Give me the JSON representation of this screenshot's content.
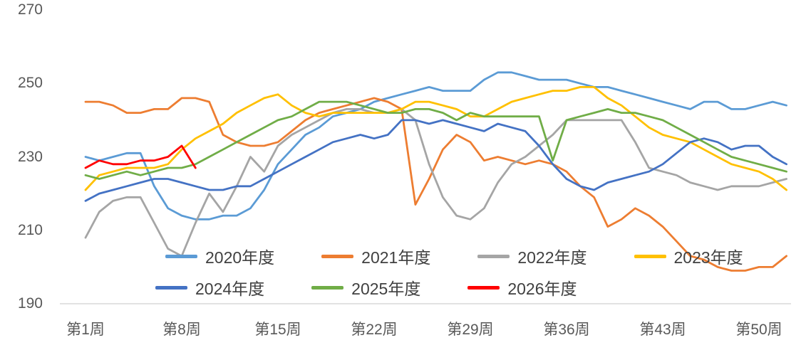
{
  "chart_data": {
    "type": "line",
    "title": "",
    "xlabel": "",
    "ylabel": "",
    "xticks": [
      "第1周",
      "第8周",
      "第15周",
      "第22周",
      "第29周",
      "第36周",
      "第43周",
      "第50周"
    ],
    "xtick_weeks": [
      1,
      8,
      15,
      22,
      29,
      36,
      43,
      50
    ],
    "yticks": [
      270,
      250,
      230,
      210,
      190
    ],
    "ylim": [
      190,
      270
    ],
    "x_count": 52,
    "grid": false,
    "legend_position": "bottom-inside",
    "axis_line_color": "#D9D9D9",
    "series": [
      {
        "name": "2020年度",
        "color": "#5B9BD5",
        "values": [
          230,
          229,
          230,
          231,
          231,
          222,
          216,
          214,
          213,
          213,
          214,
          214,
          216,
          221,
          228,
          232,
          236,
          238,
          241,
          242,
          243,
          245,
          246,
          247,
          248,
          249,
          248,
          248,
          248,
          251,
          253,
          253,
          252,
          251,
          251,
          251,
          250,
          249,
          249,
          248,
          247,
          246,
          245,
          244,
          243,
          245,
          245,
          243,
          243,
          244,
          245,
          244
        ]
      },
      {
        "name": "2021年度",
        "color": "#ED7D31",
        "values": [
          245,
          245,
          244,
          242,
          242,
          243,
          243,
          246,
          246,
          245,
          236,
          234,
          233,
          233,
          234,
          237,
          240,
          242,
          243,
          244,
          245,
          246,
          245,
          243,
          217,
          224,
          232,
          236,
          234,
          229,
          230,
          229,
          228,
          229,
          228,
          226,
          222,
          219,
          211,
          213,
          216,
          214,
          211,
          207,
          203,
          202,
          200,
          199,
          199,
          200,
          200,
          203
        ]
      },
      {
        "name": "2022年度",
        "color": "#A5A5A5",
        "values": [
          208,
          215,
          218,
          219,
          219,
          212,
          205,
          203,
          212,
          220,
          215,
          222,
          230,
          226,
          233,
          236,
          238,
          240,
          242,
          243,
          243,
          242,
          242,
          243,
          240,
          228,
          219,
          214,
          213,
          216,
          223,
          228,
          230,
          233,
          236,
          240,
          240,
          240,
          240,
          240,
          234,
          227,
          226,
          225,
          223,
          222,
          221,
          222,
          222,
          222,
          223,
          224
        ]
      },
      {
        "name": "2023年度",
        "color": "#FFC000",
        "values": [
          221,
          225,
          226,
          227,
          227,
          227,
          228,
          232,
          235,
          237,
          239,
          242,
          244,
          246,
          247,
          244,
          242,
          241,
          242,
          242,
          242,
          242,
          242,
          243,
          245,
          245,
          244,
          243,
          241,
          241,
          243,
          245,
          246,
          247,
          248,
          248,
          249,
          249,
          246,
          244,
          241,
          238,
          236,
          235,
          234,
          232,
          230,
          228,
          227,
          226,
          224,
          221
        ]
      },
      {
        "name": "2024年度",
        "color": "#4472C4",
        "values": [
          218,
          220,
          221,
          222,
          223,
          224,
          224,
          223,
          222,
          221,
          221,
          222,
          222,
          224,
          226,
          228,
          230,
          232,
          234,
          235,
          236,
          235,
          236,
          240,
          240,
          239,
          240,
          239,
          238,
          237,
          239,
          238,
          237,
          233,
          228,
          224,
          222,
          221,
          223,
          224,
          225,
          226,
          228,
          231,
          234,
          235,
          234,
          232,
          233,
          233,
          230,
          228
        ]
      },
      {
        "name": "2025年度",
        "color": "#70AD47",
        "values": [
          225,
          224,
          225,
          226,
          225,
          226,
          227,
          227,
          228,
          230,
          232,
          234,
          236,
          238,
          240,
          241,
          243,
          245,
          245,
          245,
          244,
          243,
          242,
          242,
          243,
          243,
          242,
          240,
          242,
          241,
          241,
          241,
          241,
          241,
          229,
          240,
          241,
          242,
          243,
          242,
          242,
          241,
          240,
          238,
          236,
          234,
          232,
          230,
          229,
          228,
          227,
          226
        ]
      },
      {
        "name": "2026年度",
        "color": "#FF0000",
        "values": [
          227,
          229,
          228,
          228,
          229,
          229,
          230,
          233,
          227
        ]
      }
    ]
  }
}
